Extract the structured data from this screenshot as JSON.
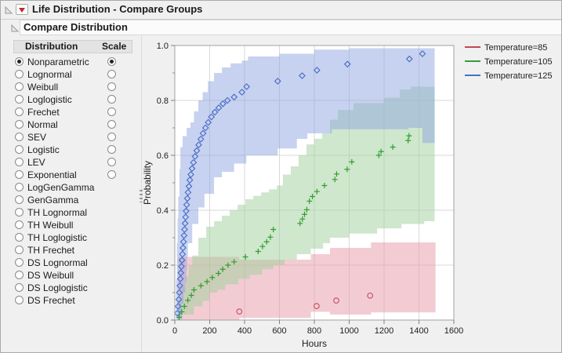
{
  "window": {
    "title": "Life Distribution - Compare Groups"
  },
  "section": {
    "title": "Compare Distribution"
  },
  "panel": {
    "columns": {
      "distribution": "Distribution",
      "scale": "Scale"
    },
    "items": [
      {
        "label": "Nonparametric",
        "dist_selected": true,
        "has_scale": true,
        "scale_selected": true
      },
      {
        "label": "Lognormal",
        "dist_selected": false,
        "has_scale": true,
        "scale_selected": false
      },
      {
        "label": "Weibull",
        "dist_selected": false,
        "has_scale": true,
        "scale_selected": false
      },
      {
        "label": "Loglogistic",
        "dist_selected": false,
        "has_scale": true,
        "scale_selected": false
      },
      {
        "label": "Frechet",
        "dist_selected": false,
        "has_scale": true,
        "scale_selected": false
      },
      {
        "label": "Normal",
        "dist_selected": false,
        "has_scale": true,
        "scale_selected": false
      },
      {
        "label": "SEV",
        "dist_selected": false,
        "has_scale": true,
        "scale_selected": false
      },
      {
        "label": "Logistic",
        "dist_selected": false,
        "has_scale": true,
        "scale_selected": false
      },
      {
        "label": "LEV",
        "dist_selected": false,
        "has_scale": true,
        "scale_selected": false
      },
      {
        "label": "Exponential",
        "dist_selected": false,
        "has_scale": true,
        "scale_selected": false
      },
      {
        "label": "LogGenGamma",
        "dist_selected": false,
        "has_scale": false,
        "scale_selected": false
      },
      {
        "label": "GenGamma",
        "dist_selected": false,
        "has_scale": false,
        "scale_selected": false
      },
      {
        "label": "TH Lognormal",
        "dist_selected": false,
        "has_scale": false,
        "scale_selected": false
      },
      {
        "label": "TH Weibull",
        "dist_selected": false,
        "has_scale": false,
        "scale_selected": false
      },
      {
        "label": "TH Loglogistic",
        "dist_selected": false,
        "has_scale": false,
        "scale_selected": false
      },
      {
        "label": "TH Frechet",
        "dist_selected": false,
        "has_scale": false,
        "scale_selected": false
      },
      {
        "label": "DS Lognormal",
        "dist_selected": false,
        "has_scale": false,
        "scale_selected": false
      },
      {
        "label": "DS Weibull",
        "dist_selected": false,
        "has_scale": false,
        "scale_selected": false
      },
      {
        "label": "DS Loglogistic",
        "dist_selected": false,
        "has_scale": false,
        "scale_selected": false
      },
      {
        "label": "DS Frechet",
        "dist_selected": false,
        "has_scale": false,
        "scale_selected": false
      }
    ]
  },
  "chart_data": {
    "type": "scatter",
    "title": "",
    "xlabel": "Hours",
    "ylabel": "Probability",
    "xlim": [
      0,
      1600
    ],
    "ylim": [
      0,
      1
    ],
    "grid": true,
    "legend_position": "top-right",
    "x_ticks": [
      0,
      200,
      400,
      600,
      800,
      1000,
      1200,
      1400,
      1600
    ],
    "y_ticks": [
      0,
      0.2,
      0.4,
      0.6,
      0.8,
      1
    ],
    "y_tick_labels": [
      "0.0",
      "0.2",
      "0.4",
      "0.6",
      "0.8",
      "1.0"
    ],
    "y_minor_ticks": [
      0.1,
      0.3,
      0.5,
      0.7,
      0.9
    ],
    "series": [
      {
        "name": "Temperature=85",
        "marker": "circle",
        "marker_color": "#c9566b",
        "band_fill": "#e799a7",
        "band_opacity": 0.5,
        "points": [
          [
            370,
            0.031
          ],
          [
            813,
            0.051
          ],
          [
            926,
            0.071
          ],
          [
            1120,
            0.089
          ]
        ],
        "band_upper": [
          [
            20,
            0.23
          ],
          [
            370,
            0.22
          ],
          [
            780,
            0.24
          ],
          [
            890,
            0.263
          ],
          [
            1125,
            0.283
          ],
          [
            1495,
            0.283
          ]
        ],
        "band_lower": [
          [
            20,
            0.0
          ],
          [
            370,
            0.008
          ],
          [
            780,
            0.03
          ],
          [
            890,
            0.02
          ],
          [
            1125,
            0.028
          ],
          [
            1495,
            0.028
          ]
        ]
      },
      {
        "name": "Temperature=105",
        "marker": "plus",
        "marker_color": "#2f9e2f",
        "band_fill": "#9fcf9b",
        "band_opacity": 0.5,
        "points": [
          [
            25,
            0.01
          ],
          [
            40,
            0.03
          ],
          [
            55,
            0.05
          ],
          [
            75,
            0.072
          ],
          [
            95,
            0.09
          ],
          [
            110,
            0.11
          ],
          [
            150,
            0.125
          ],
          [
            185,
            0.14
          ],
          [
            215,
            0.155
          ],
          [
            250,
            0.17
          ],
          [
            275,
            0.185
          ],
          [
            305,
            0.2
          ],
          [
            340,
            0.212
          ],
          [
            405,
            0.23
          ],
          [
            478,
            0.25
          ],
          [
            503,
            0.268
          ],
          [
            527,
            0.285
          ],
          [
            548,
            0.302
          ],
          [
            565,
            0.33
          ],
          [
            718,
            0.352
          ],
          [
            732,
            0.368
          ],
          [
            744,
            0.385
          ],
          [
            757,
            0.402
          ],
          [
            772,
            0.433
          ],
          [
            789,
            0.45
          ],
          [
            815,
            0.468
          ],
          [
            858,
            0.49
          ],
          [
            918,
            0.512
          ],
          [
            928,
            0.532
          ],
          [
            988,
            0.549
          ],
          [
            1015,
            0.576
          ],
          [
            1170,
            0.6
          ],
          [
            1183,
            0.614
          ],
          [
            1250,
            0.63
          ],
          [
            1338,
            0.654
          ],
          [
            1343,
            0.671
          ]
        ],
        "band_upper": [
          [
            15,
            0.07
          ],
          [
            40,
            0.12
          ],
          [
            60,
            0.16
          ],
          [
            80,
            0.2
          ],
          [
            100,
            0.235
          ],
          [
            135,
            0.3
          ],
          [
            180,
            0.34
          ],
          [
            225,
            0.36
          ],
          [
            270,
            0.38
          ],
          [
            315,
            0.4
          ],
          [
            360,
            0.42
          ],
          [
            405,
            0.44
          ],
          [
            450,
            0.452
          ],
          [
            495,
            0.465
          ],
          [
            540,
            0.476
          ],
          [
            585,
            0.49
          ],
          [
            620,
            0.53
          ],
          [
            665,
            0.56
          ],
          [
            710,
            0.6
          ],
          [
            755,
            0.64
          ],
          [
            800,
            0.66
          ],
          [
            845,
            0.68
          ],
          [
            890,
            0.73
          ],
          [
            935,
            0.765
          ],
          [
            1025,
            0.79
          ],
          [
            1200,
            0.81
          ],
          [
            1290,
            0.84
          ],
          [
            1355,
            0.85
          ],
          [
            1490,
            0.85
          ]
        ],
        "band_lower": [
          [
            15,
            0.0
          ],
          [
            45,
            0.02
          ],
          [
            110,
            0.05
          ],
          [
            160,
            0.07
          ],
          [
            200,
            0.1
          ],
          [
            245,
            0.11
          ],
          [
            290,
            0.13
          ],
          [
            365,
            0.15
          ],
          [
            430,
            0.165
          ],
          [
            500,
            0.185
          ],
          [
            565,
            0.2
          ],
          [
            630,
            0.22
          ],
          [
            700,
            0.24
          ],
          [
            780,
            0.26
          ],
          [
            850,
            0.28
          ],
          [
            890,
            0.3
          ],
          [
            1000,
            0.315
          ],
          [
            1160,
            0.334
          ],
          [
            1300,
            0.35
          ],
          [
            1430,
            0.36
          ],
          [
            1490,
            0.38
          ]
        ]
      },
      {
        "name": "Temperature=125",
        "marker": "diamond",
        "marker_color": "#4668c8",
        "band_fill": "#8da5df",
        "band_opacity": 0.5,
        "points": [
          [
            15,
            0.025
          ],
          [
            19,
            0.05
          ],
          [
            23,
            0.075
          ],
          [
            26,
            0.1
          ],
          [
            29,
            0.125
          ],
          [
            32,
            0.15
          ],
          [
            35,
            0.172
          ],
          [
            38,
            0.195
          ],
          [
            41,
            0.218
          ],
          [
            44,
            0.24
          ],
          [
            47,
            0.263
          ],
          [
            50,
            0.285
          ],
          [
            53,
            0.308
          ],
          [
            56,
            0.33
          ],
          [
            59,
            0.352
          ],
          [
            62,
            0.375
          ],
          [
            65,
            0.397
          ],
          [
            68,
            0.42
          ],
          [
            72,
            0.443
          ],
          [
            76,
            0.465
          ],
          [
            81,
            0.487
          ],
          [
            86,
            0.51
          ],
          [
            92,
            0.53
          ],
          [
            99,
            0.552
          ],
          [
            107,
            0.574
          ],
          [
            116,
            0.596
          ],
          [
            126,
            0.617
          ],
          [
            137,
            0.638
          ],
          [
            149,
            0.659
          ],
          [
            162,
            0.68
          ],
          [
            176,
            0.7
          ],
          [
            192,
            0.72
          ],
          [
            210,
            0.74
          ],
          [
            230,
            0.757
          ],
          [
            252,
            0.773
          ],
          [
            276,
            0.788
          ],
          [
            302,
            0.8
          ],
          [
            340,
            0.812
          ],
          [
            385,
            0.83
          ],
          [
            412,
            0.85
          ],
          [
            590,
            0.87
          ],
          [
            730,
            0.89
          ],
          [
            815,
            0.91
          ],
          [
            990,
            0.932
          ],
          [
            1345,
            0.951
          ],
          [
            1420,
            0.97
          ]
        ],
        "band_upper": [
          [
            8,
            0.15
          ],
          [
            12,
            0.28
          ],
          [
            16,
            0.37
          ],
          [
            20,
            0.45
          ],
          [
            27,
            0.55
          ],
          [
            32,
            0.63
          ],
          [
            45,
            0.67
          ],
          [
            68,
            0.7
          ],
          [
            90,
            0.72
          ],
          [
            110,
            0.76
          ],
          [
            135,
            0.8
          ],
          [
            160,
            0.83
          ],
          [
            190,
            0.87
          ],
          [
            225,
            0.9
          ],
          [
            270,
            0.92
          ],
          [
            320,
            0.935
          ],
          [
            385,
            0.945
          ],
          [
            420,
            0.96
          ],
          [
            600,
            0.97
          ],
          [
            800,
            0.985
          ],
          [
            1000,
            0.99
          ],
          [
            1490,
            0.99
          ]
        ],
        "band_lower": [
          [
            8,
            0.0
          ],
          [
            30,
            0.01
          ],
          [
            40,
            0.06
          ],
          [
            50,
            0.1
          ],
          [
            60,
            0.14
          ],
          [
            66,
            0.18
          ],
          [
            70,
            0.23
          ],
          [
            75,
            0.28
          ],
          [
            100,
            0.35
          ],
          [
            135,
            0.41
          ],
          [
            170,
            0.46
          ],
          [
            225,
            0.52
          ],
          [
            270,
            0.54
          ],
          [
            340,
            0.57
          ],
          [
            410,
            0.6
          ],
          [
            590,
            0.625
          ],
          [
            700,
            0.66
          ],
          [
            760,
            0.68
          ],
          [
            900,
            0.695
          ],
          [
            1340,
            0.7
          ],
          [
            1420,
            0.645
          ],
          [
            1490,
            0.645
          ]
        ]
      }
    ],
    "legend": [
      {
        "label": "Temperature=85",
        "color": "#bf4a55"
      },
      {
        "label": "Temperature=105",
        "color": "#3a9a3a"
      },
      {
        "label": "Temperature=125",
        "color": "#4472c4"
      }
    ]
  },
  "colors": {
    "red_triangle": "#c0282d",
    "plot_background": "#ffffff",
    "grid": "#d8d8d8",
    "frame": "#a0a0a0"
  }
}
